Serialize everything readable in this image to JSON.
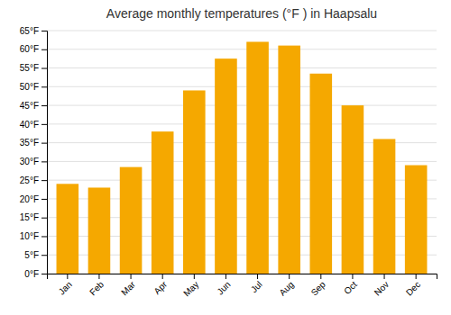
{
  "chart_data": {
    "type": "bar",
    "title": "Average monthly temperatures (°F ) in Haapsalu",
    "categories": [
      "Jan",
      "Feb",
      "Mar",
      "Apr",
      "May",
      "Jun",
      "Jul",
      "Aug",
      "Sep",
      "Oct",
      "Nov",
      "Dec"
    ],
    "values": [
      24,
      23,
      28.5,
      38,
      49,
      57.5,
      62,
      61,
      53.5,
      45,
      36,
      29
    ],
    "color": "#F5A800",
    "ylim": [
      0,
      65
    ],
    "yticks": [
      {
        "value": 0,
        "label": "0°F"
      },
      {
        "value": 5,
        "label": "5°F"
      },
      {
        "value": 10,
        "label": "10°F"
      },
      {
        "value": 15,
        "label": "15°F"
      },
      {
        "value": 20,
        "label": "20°F"
      },
      {
        "value": 25,
        "label": "25°F"
      },
      {
        "value": 30,
        "label": "30°F"
      },
      {
        "value": 35,
        "label": "35°F"
      },
      {
        "value": 40,
        "label": "40°F"
      },
      {
        "value": 45,
        "label": "45°F"
      },
      {
        "value": 50,
        "label": "50°F"
      },
      {
        "value": 55,
        "label": "55°F"
      },
      {
        "value": 60,
        "label": "60°F"
      },
      {
        "value": 65,
        "label": "65°F"
      }
    ],
    "grid": true
  }
}
